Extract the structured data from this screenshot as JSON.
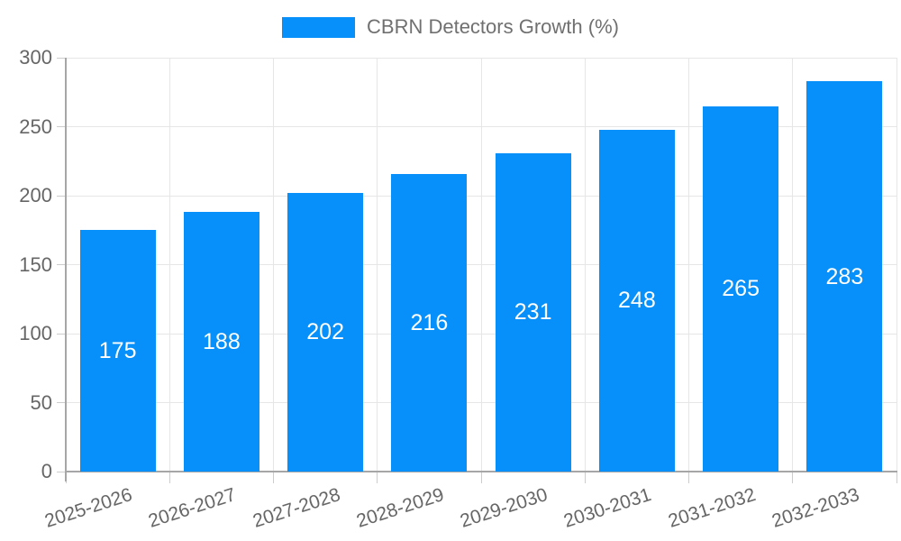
{
  "legend": {
    "label": "CBRN Detectors Growth (%)"
  },
  "colors": {
    "bar": "#0790f9",
    "grid": "#e6e6e6",
    "axis": "#a6a6a6",
    "tick": "#cccccc",
    "tick_label": "#666666",
    "legend_text": "#707070",
    "bar_label": "#ffffff",
    "background": "#ffffff"
  },
  "chart_data": {
    "type": "bar",
    "title": "CBRN Detectors Growth (%)",
    "categories": [
      "2025-2026",
      "2026-2027",
      "2027-2028",
      "2028-2029",
      "2029-2030",
      "2030-2031",
      "2031-2032",
      "2032-2033"
    ],
    "values": [
      175,
      188,
      202,
      216,
      231,
      248,
      265,
      283
    ],
    "series": [
      {
        "name": "CBRN Detectors Growth (%)",
        "values": [
          175,
          188,
          202,
          216,
          231,
          248,
          265,
          283
        ]
      }
    ],
    "xlabel": "",
    "ylabel": "",
    "ylim": [
      0,
      300
    ],
    "yticks": [
      0,
      50,
      100,
      150,
      200,
      250,
      300
    ],
    "grid": true,
    "legend_position": "top",
    "bar_value_labels": "inside-center",
    "x_tick_rotation_deg": -18
  }
}
